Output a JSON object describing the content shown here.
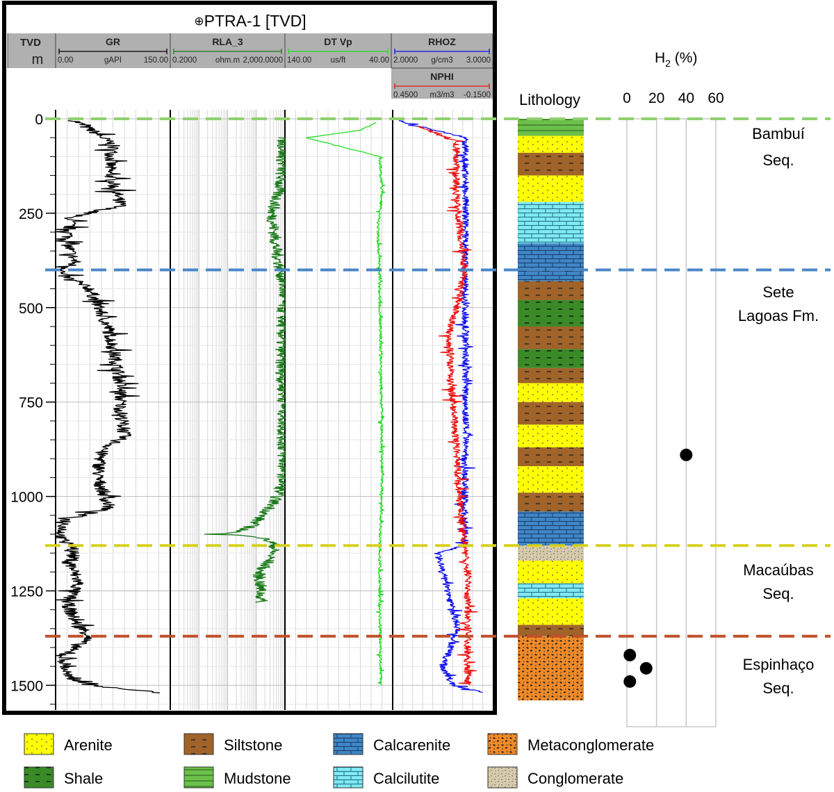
{
  "figure": {
    "panel_title": "PTRA-1 [TVD]",
    "depth_track": {
      "label": "TVD",
      "unit": "m",
      "ticks": [
        0,
        250,
        500,
        750,
        1000,
        1250,
        1500
      ]
    },
    "track_headers": [
      {
        "name": "GR",
        "min": "0.00",
        "unit": "gAPI",
        "max": "150.00",
        "color": "#000000"
      },
      {
        "name": "RLA_3",
        "min": "0.2000",
        "unit": "ohm.m",
        "max": "2,000.0000",
        "color": "#1a7a1a"
      },
      {
        "name": "DT Vp",
        "min": "140.00",
        "unit": "us/ft",
        "max": "40.00",
        "color": "#22dd22"
      },
      {
        "name": "RHOZ",
        "min": "2.0000",
        "unit": "g/cm3",
        "max": "3.0000",
        "color": "#1010ee"
      },
      {
        "name": "NPHI",
        "min": "0.4500",
        "unit": "m3/m3",
        "max": "-0.1500",
        "color": "#ee1010"
      }
    ],
    "lithology_label": "Lithology",
    "h2_axis": {
      "label": "H",
      "subscript": "2",
      "suffix": " (%)",
      "ticks": [
        "0",
        "20",
        "40",
        "60"
      ]
    },
    "boundaries": [
      {
        "depth": 0,
        "color": "#8fd070"
      },
      {
        "depth": 400,
        "color": "#4a86c8"
      },
      {
        "depth": 1130,
        "color": "#d6d01e"
      },
      {
        "depth": 1370,
        "color": "#c0502a"
      }
    ],
    "units": [
      {
        "line1": "Bambuí",
        "line2": "Seq."
      },
      {
        "line1": "Sete",
        "line2": "Lagoas Fm."
      },
      {
        "line1": "Macaúbas",
        "line2": "Seq."
      },
      {
        "line1": "Espinhaço",
        "line2": "Seq."
      }
    ],
    "legend": [
      {
        "label": "Arenite",
        "pattern": "arenite"
      },
      {
        "label": "Siltstone",
        "pattern": "siltstone"
      },
      {
        "label": "Calcarenite",
        "pattern": "calcarenite"
      },
      {
        "label": "Metaconglomerate",
        "pattern": "metacong"
      },
      {
        "label": "Shale",
        "pattern": "shale"
      },
      {
        "label": "Mudstone",
        "pattern": "mudstone"
      },
      {
        "label": "Calcilutite",
        "pattern": "calcilutite"
      },
      {
        "label": "Conglomerate",
        "pattern": "cong"
      }
    ],
    "colors": {
      "arenite": "#ffff00",
      "siltstone": "#a0632a",
      "calcarenite": "#3f86c6",
      "calcilutite": "#7fe8f0",
      "shale": "#3a8a28",
      "mudstone": "#6cc04a",
      "metaconglomerate": "#f08a28",
      "conglomerate": "#d8ccaa"
    }
  },
  "chart_data": {
    "type": "line",
    "well": "PTRA-1",
    "depth_axis": {
      "label": "TVD",
      "unit": "m",
      "range": [
        0,
        1550
      ],
      "ticks": [
        0,
        250,
        500,
        750,
        1000,
        1250,
        1500
      ]
    },
    "series": [
      {
        "name": "GR",
        "unit": "gAPI",
        "scale": [
          0,
          150
        ],
        "color": "#000000",
        "depth": [
          5,
          40,
          70,
          140,
          230,
          260,
          330,
          380,
          410,
          450,
          560,
          700,
          770,
          840,
          880,
          950,
          1030,
          1060,
          1110,
          1130,
          1180,
          1230,
          1280,
          1330,
          1370,
          1420,
          1480,
          1505,
          1520
        ],
        "values": [
          25,
          55,
          75,
          70,
          85,
          20,
          15,
          25,
          5,
          45,
          70,
          85,
          85,
          90,
          60,
          55,
          70,
          15,
          5,
          25,
          20,
          30,
          15,
          25,
          45,
          10,
          15,
          65,
          140
        ]
      },
      {
        "name": "RLA_3",
        "unit": "ohm.m",
        "scale": [
          0.2,
          2000
        ],
        "log": true,
        "color": "#1a7a1a",
        "depth": [
          50,
          150,
          250,
          350,
          450,
          550,
          650,
          750,
          850,
          950,
          1050,
          1100,
          1130,
          1200,
          1280
        ],
        "values": [
          1800,
          1500,
          700,
          1000,
          1800,
          1600,
          1500,
          1800,
          1700,
          1800,
          300,
          2.5,
          900,
          250,
          300
        ]
      },
      {
        "name": "DT Vp",
        "unit": "us/ft",
        "scale": [
          140,
          40
        ],
        "color": "#22dd22",
        "depth": [
          10,
          30,
          50,
          100,
          200,
          300,
          400,
          500,
          600,
          700,
          800,
          900,
          1000,
          1130,
          1300,
          1500
        ],
        "values": [
          55,
          70,
          120,
          52,
          50,
          54,
          52,
          52,
          51,
          51,
          50,
          50,
          50,
          52,
          52,
          51
        ]
      },
      {
        "name": "RHOZ",
        "unit": "g/cm3",
        "scale": [
          2.0,
          3.0
        ],
        "color": "#1010ee",
        "depth": [
          5,
          50,
          200,
          400,
          600,
          800,
          1000,
          1130,
          1150,
          1250,
          1350,
          1450,
          1500,
          1520
        ],
        "values": [
          2.05,
          2.72,
          2.73,
          2.72,
          2.73,
          2.73,
          2.72,
          2.72,
          2.45,
          2.55,
          2.65,
          2.5,
          2.6,
          2.9
        ]
      },
      {
        "name": "NPHI",
        "unit": "m3/m3",
        "scale": [
          0.45,
          -0.15
        ],
        "color": "#ee1010",
        "depth": [
          20,
          60,
          200,
          400,
          480,
          560,
          700,
          800,
          1000,
          1130,
          1200,
          1400,
          1500
        ],
        "values": [
          0.3,
          0.07,
          0.07,
          0.02,
          0.05,
          0.11,
          0.1,
          0.08,
          0.05,
          0.02,
          0.0,
          0.0,
          0.0
        ]
      }
    ],
    "lithology_intervals": [
      {
        "top": 0,
        "base": 45,
        "lith": "mudstone"
      },
      {
        "top": 45,
        "base": 90,
        "lith": "arenite"
      },
      {
        "top": 90,
        "base": 150,
        "lith": "siltstone"
      },
      {
        "top": 150,
        "base": 220,
        "lith": "arenite"
      },
      {
        "top": 220,
        "base": 330,
        "lith": "calcilutite"
      },
      {
        "top": 330,
        "base": 430,
        "lith": "calcarenite"
      },
      {
        "top": 430,
        "base": 480,
        "lith": "siltstone"
      },
      {
        "top": 480,
        "base": 550,
        "lith": "shale"
      },
      {
        "top": 550,
        "base": 610,
        "lith": "siltstone"
      },
      {
        "top": 610,
        "base": 660,
        "lith": "shale"
      },
      {
        "top": 660,
        "base": 700,
        "lith": "siltstone"
      },
      {
        "top": 700,
        "base": 750,
        "lith": "arenite"
      },
      {
        "top": 750,
        "base": 810,
        "lith": "siltstone"
      },
      {
        "top": 810,
        "base": 870,
        "lith": "arenite"
      },
      {
        "top": 870,
        "base": 920,
        "lith": "siltstone"
      },
      {
        "top": 920,
        "base": 990,
        "lith": "arenite"
      },
      {
        "top": 990,
        "base": 1040,
        "lith": "siltstone"
      },
      {
        "top": 1040,
        "base": 1130,
        "lith": "calcarenite"
      },
      {
        "top": 1130,
        "base": 1170,
        "lith": "conglomerate"
      },
      {
        "top": 1170,
        "base": 1230,
        "lith": "arenite"
      },
      {
        "top": 1230,
        "base": 1270,
        "lith": "calcilutite"
      },
      {
        "top": 1270,
        "base": 1340,
        "lith": "arenite"
      },
      {
        "top": 1340,
        "base": 1370,
        "lith": "siltstone"
      },
      {
        "top": 1370,
        "base": 1540,
        "lith": "metaconglomerate"
      }
    ],
    "h2_samples": {
      "unit": "%",
      "range": [
        0,
        60
      ],
      "points": [
        {
          "depth": 890,
          "h2": 40
        },
        {
          "depth": 1420,
          "h2": 2
        },
        {
          "depth": 1455,
          "h2": 13
        },
        {
          "depth": 1490,
          "h2": 2
        }
      ]
    }
  }
}
